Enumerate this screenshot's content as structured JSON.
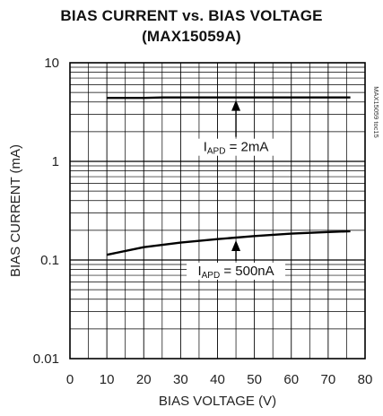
{
  "chart_data": {
    "type": "line",
    "title": "BIAS CURRENT vs. BIAS VOLTAGE",
    "subtitle": "(MAX15059A)",
    "xlabel": "BIAS VOLTAGE (V)",
    "ylabel": "BIAS CURRENT (mA)",
    "xlim": [
      0,
      80
    ],
    "ylim": [
      0.01,
      10
    ],
    "yscale": "log",
    "grid": true,
    "x_ticks": [
      "0",
      "10",
      "20",
      "30",
      "40",
      "50",
      "60",
      "70",
      "80"
    ],
    "y_ticks": [
      "0.01",
      "0.1",
      "1",
      "10"
    ],
    "note": "MAX15059 toc15",
    "series": [
      {
        "name": "I_APD = 2mA",
        "x": [
          10,
          20,
          25,
          30,
          40,
          50,
          60,
          70,
          76
        ],
        "y": [
          4.4,
          4.4,
          4.45,
          4.45,
          4.45,
          4.45,
          4.45,
          4.45,
          4.45
        ]
      },
      {
        "name": "I_APD = 500nA",
        "x": [
          10,
          20,
          30,
          40,
          50,
          60,
          70,
          76
        ],
        "y": [
          0.113,
          0.135,
          0.15,
          0.163,
          0.175,
          0.185,
          0.192,
          0.196
        ]
      }
    ],
    "annotations": [
      {
        "main": "I",
        "sub": "APD",
        "rest": " = 2mA",
        "series": 0,
        "at_x": 45
      },
      {
        "main": "I",
        "sub": "APD",
        "rest": " = 500nA",
        "series": 1,
        "at_x": 45
      }
    ]
  }
}
